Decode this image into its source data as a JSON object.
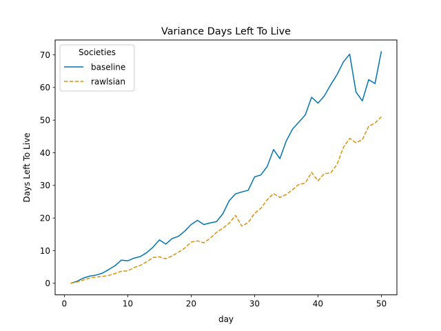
{
  "chart_data": {
    "type": "line",
    "title": "Variance Days Left To Live",
    "xlabel": "day",
    "ylabel": "Days Left To Live",
    "xlim": [
      -1.45,
      52.45
    ],
    "ylim": [
      -3.55,
      74.55
    ],
    "xticks": [
      0,
      10,
      20,
      30,
      40,
      50
    ],
    "yticks": [
      0,
      10,
      20,
      30,
      40,
      50,
      60,
      70
    ],
    "grid": false,
    "legend": {
      "title": "Societies",
      "placement": "top-left"
    },
    "x": [
      1,
      2,
      3,
      4,
      5,
      6,
      7,
      8,
      9,
      10,
      11,
      12,
      13,
      14,
      15,
      16,
      17,
      18,
      19,
      20,
      21,
      22,
      23,
      24,
      25,
      26,
      27,
      28,
      29,
      30,
      31,
      32,
      33,
      34,
      35,
      36,
      37,
      38,
      39,
      40,
      41,
      42,
      43,
      44,
      45,
      46,
      47,
      48,
      49,
      50
    ],
    "series": [
      {
        "name": "baseline",
        "color": "#0072b2",
        "style": "solid",
        "values": [
          0.0,
          0.6,
          1.6,
          2.2,
          2.5,
          3.1,
          4.2,
          5.4,
          7.1,
          6.9,
          7.7,
          8.2,
          9.4,
          11.1,
          13.3,
          12.0,
          13.7,
          14.4,
          16.0,
          18.0,
          19.3,
          18.0,
          18.5,
          18.9,
          21.3,
          25.3,
          27.4,
          28.0,
          28.5,
          32.6,
          33.2,
          35.8,
          41.0,
          38.2,
          43.6,
          47.3,
          49.4,
          51.6,
          57.0,
          55.2,
          57.4,
          60.8,
          63.9,
          67.8,
          70.2,
          58.6,
          55.9,
          62.4,
          61.2,
          71.1
        ]
      },
      {
        "name": "rawlsian",
        "color": "#de8f05",
        "style": "dashed",
        "values": [
          0.0,
          0.4,
          1.0,
          1.6,
          1.9,
          2.1,
          2.4,
          3.0,
          3.7,
          3.8,
          4.8,
          5.5,
          6.6,
          7.9,
          8.1,
          7.5,
          8.4,
          9.5,
          10.8,
          12.6,
          13.0,
          12.4,
          13.8,
          15.6,
          16.9,
          18.4,
          20.8,
          17.5,
          18.6,
          21.4,
          23.0,
          25.6,
          27.5,
          26.3,
          27.2,
          28.7,
          30.3,
          30.7,
          34.0,
          31.4,
          33.6,
          33.8,
          36.4,
          41.6,
          44.4,
          43.1,
          44.0,
          48.1,
          49.1,
          51.0
        ]
      }
    ]
  }
}
